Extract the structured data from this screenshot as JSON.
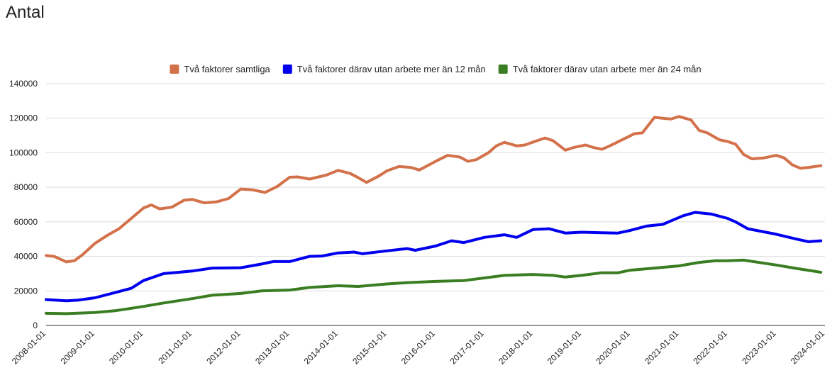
{
  "page": {
    "title": "Antal"
  },
  "chart_data": {
    "type": "line",
    "title": "Antal",
    "xlabel": "",
    "ylabel": "",
    "ylim": [
      0,
      140000
    ],
    "yticks": [
      0,
      20000,
      40000,
      60000,
      80000,
      100000,
      120000,
      140000
    ],
    "ytick_labels": [
      "0",
      "20000",
      "40000",
      "60000",
      "80000",
      "100000",
      "120000",
      "140000"
    ],
    "xlim": [
      "2008-01-01",
      "2024-01-01"
    ],
    "xticks": [
      "2008-01-01",
      "2009-01-01",
      "2010-01-01",
      "2011-01-01",
      "2012-01-01",
      "2013-01-01",
      "2014-01-01",
      "2015-01-01",
      "2016-01-01",
      "2017-01-01",
      "2018-01-01",
      "2019-01-01",
      "2020-01-01",
      "2021-01-01",
      "2022-01-01",
      "2023-01-01",
      "2024-01-01"
    ],
    "grid": true,
    "legend_position": "top",
    "series": [
      {
        "name": "Två faktorer samtliga",
        "color": "#d3714a",
        "x": [
          "2008-01-01",
          "2008-03-01",
          "2008-06-01",
          "2008-08-01",
          "2008-10-01",
          "2009-01-01",
          "2009-04-01",
          "2009-07-01",
          "2009-10-01",
          "2010-01-01",
          "2010-03-01",
          "2010-05-01",
          "2010-08-01",
          "2010-11-01",
          "2011-01-01",
          "2011-04-01",
          "2011-07-01",
          "2011-10-01",
          "2012-01-01",
          "2012-04-01",
          "2012-07-01",
          "2012-10-01",
          "2013-01-01",
          "2013-03-01",
          "2013-06-01",
          "2013-10-01",
          "2014-01-01",
          "2014-04-01",
          "2014-06-01",
          "2014-08-01",
          "2014-11-01",
          "2015-01-01",
          "2015-04-01",
          "2015-07-01",
          "2015-09-01",
          "2016-01-01",
          "2016-04-01",
          "2016-07-01",
          "2016-09-01",
          "2016-11-01",
          "2017-02-01",
          "2017-04-01",
          "2017-06-01",
          "2017-09-01",
          "2017-11-01",
          "2018-02-01",
          "2018-04-01",
          "2018-06-01",
          "2018-09-01",
          "2018-11-01",
          "2019-02-01",
          "2019-04-01",
          "2019-06-01",
          "2019-08-01",
          "2019-11-01",
          "2020-02-01",
          "2020-04-01",
          "2020-07-01",
          "2020-09-01",
          "2020-11-01",
          "2021-01-01",
          "2021-04-01",
          "2021-06-01",
          "2021-08-01",
          "2021-11-01",
          "2022-01-01",
          "2022-03-01",
          "2022-05-01",
          "2022-07-01",
          "2022-10-01",
          "2023-01-01",
          "2023-03-01",
          "2023-05-01",
          "2023-07-01",
          "2023-09-01",
          "2023-12-01"
        ],
        "values": [
          40500,
          40000,
          36800,
          37500,
          41000,
          47500,
          52000,
          56000,
          62000,
          68000,
          69800,
          67500,
          68500,
          72500,
          73000,
          71000,
          71500,
          73500,
          79000,
          78500,
          77000,
          80500,
          85800,
          86000,
          84800,
          87000,
          89800,
          88000,
          85500,
          82800,
          86500,
          89500,
          92000,
          91500,
          90000,
          95000,
          98500,
          97500,
          95000,
          96000,
          100000,
          104000,
          106000,
          104000,
          104500,
          107000,
          108500,
          107000,
          101500,
          103000,
          104500,
          103000,
          102000,
          104000,
          107500,
          111000,
          111500,
          120500,
          120000,
          119500,
          121000,
          119000,
          113000,
          111500,
          107500,
          106500,
          105000,
          99000,
          96500,
          97000,
          98500,
          97000,
          93000,
          91000,
          91500,
          92500
        ]
      },
      {
        "name": "Två faktorer därav utan arbete mer än 12 mån",
        "color": "#0000ee",
        "x": [
          "2008-01-01",
          "2008-06-01",
          "2008-09-01",
          "2009-01-01",
          "2009-06-01",
          "2009-10-01",
          "2010-01-01",
          "2010-06-01",
          "2011-01-01",
          "2011-06-01",
          "2012-01-01",
          "2012-06-01",
          "2012-09-01",
          "2013-01-01",
          "2013-06-01",
          "2013-09-01",
          "2014-01-01",
          "2014-05-01",
          "2014-07-01",
          "2015-01-01",
          "2015-06-01",
          "2015-08-01",
          "2016-01-01",
          "2016-05-01",
          "2016-08-01",
          "2017-01-01",
          "2017-06-01",
          "2017-09-01",
          "2018-01-01",
          "2018-05-01",
          "2018-09-01",
          "2019-01-01",
          "2019-06-01",
          "2019-10-01",
          "2020-01-01",
          "2020-05-01",
          "2020-09-01",
          "2020-12-01",
          "2021-02-01",
          "2021-05-01",
          "2021-09-01",
          "2022-01-01",
          "2022-03-01",
          "2022-06-01",
          "2023-01-01",
          "2023-06-01",
          "2023-09-01",
          "2023-12-01"
        ],
        "values": [
          15000,
          14300,
          14700,
          16000,
          19000,
          21500,
          26000,
          30000,
          31500,
          33200,
          33400,
          35500,
          37000,
          37000,
          40000,
          40200,
          42000,
          42500,
          41500,
          43200,
          44500,
          43500,
          46000,
          49000,
          48000,
          51000,
          52500,
          51000,
          55500,
          56000,
          53500,
          54000,
          53700,
          53500,
          55000,
          57500,
          58500,
          61500,
          63500,
          65500,
          64500,
          62000,
          60000,
          56000,
          52800,
          50000,
          48500,
          49000
        ]
      },
      {
        "name": "Två faktorer därav utan arbete mer än 24 mån",
        "color": "#3a7d22",
        "x": [
          "2008-01-01",
          "2008-06-01",
          "2009-01-01",
          "2009-06-01",
          "2010-01-01",
          "2010-06-01",
          "2011-01-01",
          "2011-06-01",
          "2012-01-01",
          "2012-06-01",
          "2013-01-01",
          "2013-06-01",
          "2014-01-01",
          "2014-06-01",
          "2015-01-01",
          "2015-06-01",
          "2016-01-01",
          "2016-08-01",
          "2017-01-01",
          "2017-06-01",
          "2018-01-01",
          "2018-06-01",
          "2018-09-01",
          "2019-01-01",
          "2019-06-01",
          "2019-10-01",
          "2020-01-01",
          "2020-06-01",
          "2021-01-01",
          "2021-06-01",
          "2021-10-01",
          "2022-01-01",
          "2022-05-01",
          "2023-01-01",
          "2023-06-01",
          "2023-12-01"
        ],
        "values": [
          7000,
          6800,
          7500,
          8500,
          11000,
          13000,
          15500,
          17500,
          18500,
          20000,
          20500,
          22000,
          23000,
          22600,
          24000,
          24800,
          25500,
          26000,
          27500,
          29000,
          29500,
          29000,
          28000,
          29000,
          30500,
          30500,
          32000,
          33000,
          34500,
          36500,
          37500,
          37500,
          37800,
          35000,
          33000,
          30800
        ]
      }
    ]
  }
}
